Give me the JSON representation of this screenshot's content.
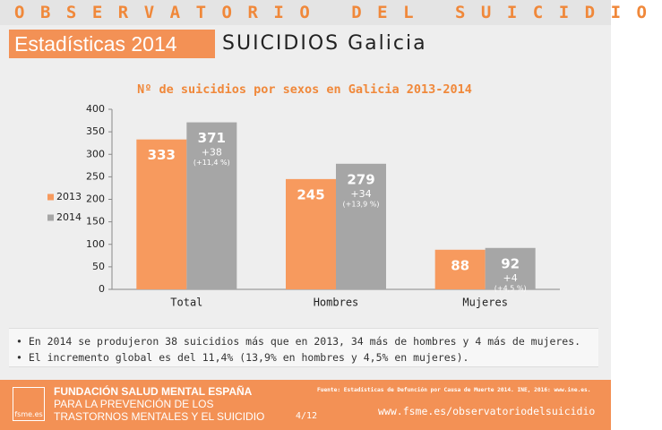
{
  "header": {
    "brand": "OBSERVATORIO DEL SUICIDIO",
    "section": "Estadísticas 2014",
    "subtitle": "SUICIDIOS Galicia"
  },
  "chart_data": {
    "type": "bar",
    "title": "Nº de suicidios por sexos en Galicia 2013-2014",
    "categories": [
      "Total",
      "Hombres",
      "Mujeres"
    ],
    "series": [
      {
        "name": "2013",
        "color": "#f79a5e",
        "values": [
          333,
          245,
          88
        ]
      },
      {
        "name": "2014",
        "color": "#a6a6a6",
        "values": [
          371,
          279,
          92
        ]
      }
    ],
    "annotations": [
      [
        "+38",
        "(+11,4 %)"
      ],
      [
        "+34",
        "(+13,9 %)"
      ],
      [
        "+4",
        "(+4,5 %)"
      ]
    ],
    "ylim": [
      0,
      400
    ],
    "yticks": [
      0,
      50,
      100,
      150,
      200,
      250,
      300,
      350,
      400
    ],
    "grid": false,
    "legend": "left"
  },
  "notes": [
    "En 2014 se produjeron 38 suicidios más que en 2013, 34 más de hombres y 4 más de mujeres.",
    "El incremento global es del 11,4% (13,9% en hombres y 4,5% en mujeres)."
  ],
  "footer": {
    "logo": "fsme.es",
    "lines": [
      "FUNDACIÓN SALUD MENTAL ESPAÑA",
      "PARA LA PREVENCIÓN DE LOS",
      "TRASTORNOS MENTALES Y EL SUICIDIO"
    ],
    "source": "Fuente: Estadísticas de Defunción por Causa de Muerte 2014. INE, 2016: www.ine.es.",
    "page": "4/12",
    "url": "www.fsme.es/observatoriodelsuicidio"
  }
}
